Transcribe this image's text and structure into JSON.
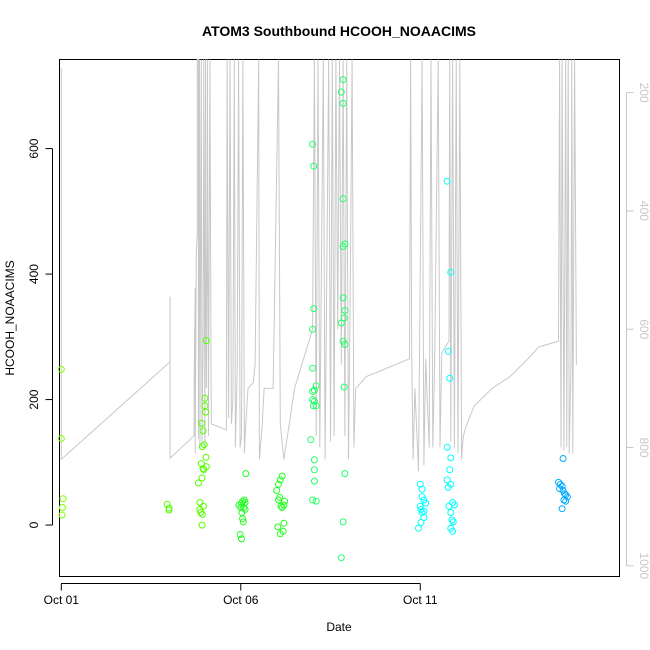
{
  "chart_data": {
    "type": "scatter",
    "title": "ATOM3 Southbound HCOOH_NOAACIMS",
    "xlabel": "Date",
    "ylabel": "HCOOH_NOAACIMS",
    "x_unit": "days in October (calendar day)",
    "xlim": [
      0.95,
      16.55
    ],
    "ylim": [
      -82,
      742
    ],
    "x_ticks": [
      {
        "value": 1,
        "label": "Oct 01"
      },
      {
        "value": 6,
        "label": "Oct 06"
      },
      {
        "value": 11,
        "label": "Oct 11"
      }
    ],
    "y_ticks": [
      0,
      200,
      400,
      600
    ],
    "y2_label": "",
    "y2_ticks": [
      200,
      400,
      600,
      800,
      1000
    ],
    "y2_lim_reversed": [
      1018,
      144
    ],
    "grid": false,
    "colors": {
      "pressure_line": "#c8c8c8",
      "y2_axis": "#c8c8c8"
    },
    "series": [
      {
        "color": "#7fff00",
        "points": [
          [
            1.0,
            248
          ],
          [
            1.0,
            138
          ],
          [
            1.05,
            42
          ],
          [
            1.03,
            28
          ],
          [
            1.02,
            16
          ]
        ]
      },
      {
        "color": "#55ff00",
        "points": [
          [
            3.95,
            33
          ],
          [
            4.0,
            27
          ],
          [
            4.0,
            24
          ],
          [
            4.82,
            67
          ],
          [
            4.86,
            36
          ],
          [
            4.9,
            98
          ],
          [
            4.92,
            75
          ],
          [
            4.95,
            90
          ],
          [
            4.97,
            88
          ],
          [
            4.88,
            20
          ],
          [
            4.93,
            17
          ],
          [
            4.96,
            30
          ],
          [
            4.92,
            0
          ],
          [
            4.91,
            162
          ],
          [
            4.95,
            150
          ],
          [
            4.98,
            128
          ],
          [
            4.93,
            125
          ],
          [
            5.0,
            202
          ],
          [
            5.0,
            190
          ],
          [
            5.02,
            180
          ],
          [
            5.04,
            294
          ],
          [
            4.86,
            25
          ],
          [
            5.03,
            108
          ],
          [
            5.04,
            93
          ]
        ]
      },
      {
        "color": "#22ff22",
        "points": [
          [
            5.95,
            32
          ],
          [
            6.0,
            28
          ],
          [
            6.02,
            35
          ],
          [
            6.05,
            38
          ],
          [
            6.1,
            40
          ],
          [
            6.12,
            36
          ],
          [
            6.03,
            20
          ],
          [
            6.05,
            10
          ],
          [
            6.07,
            5
          ],
          [
            5.98,
            -15
          ],
          [
            6.02,
            -22
          ],
          [
            6.08,
            28
          ],
          [
            6.14,
            82
          ],
          [
            6.12,
            25
          ],
          [
            7.0,
            55
          ],
          [
            7.05,
            65
          ],
          [
            7.1,
            72
          ],
          [
            7.15,
            78
          ],
          [
            7.05,
            40
          ],
          [
            7.08,
            44
          ],
          [
            7.12,
            30
          ],
          [
            7.15,
            28
          ],
          [
            7.2,
            32
          ],
          [
            7.22,
            38
          ],
          [
            7.03,
            -3
          ],
          [
            7.1,
            -14
          ],
          [
            7.18,
            -10
          ],
          [
            7.2,
            3
          ]
        ]
      },
      {
        "color": "#22ff66",
        "points": [
          [
            7.95,
            136
          ],
          [
            8.0,
            200
          ],
          [
            8.02,
            190
          ],
          [
            8.05,
            215
          ],
          [
            8.1,
            222
          ],
          [
            8.0,
            213
          ],
          [
            8.05,
            197
          ],
          [
            8.1,
            190
          ],
          [
            8.0,
            250
          ],
          [
            8.0,
            312
          ],
          [
            8.03,
            345
          ],
          [
            8.0,
            607
          ],
          [
            8.03,
            572
          ],
          [
            8.05,
            104
          ],
          [
            8.05,
            88
          ],
          [
            8.05,
            70
          ],
          [
            8.0,
            40
          ],
          [
            8.1,
            38
          ],
          [
            8.85,
            710
          ],
          [
            8.8,
            690
          ],
          [
            8.85,
            672
          ],
          [
            8.85,
            520
          ],
          [
            8.85,
            444
          ],
          [
            8.9,
            448
          ],
          [
            8.85,
            362
          ],
          [
            8.9,
            342
          ],
          [
            8.88,
            330
          ],
          [
            8.8,
            322
          ],
          [
            8.85,
            293
          ],
          [
            8.9,
            288
          ],
          [
            8.88,
            220
          ],
          [
            8.9,
            82
          ],
          [
            8.85,
            5
          ],
          [
            8.8,
            -52
          ]
        ]
      },
      {
        "color": "#00ffff",
        "points": [
          [
            11.0,
            65
          ],
          [
            11.05,
            57
          ],
          [
            11.05,
            45
          ],
          [
            11.1,
            40
          ],
          [
            11.0,
            30
          ],
          [
            11.02,
            25
          ],
          [
            11.05,
            20
          ],
          [
            11.1,
            12
          ],
          [
            10.95,
            -5
          ],
          [
            11.02,
            4
          ],
          [
            11.1,
            22
          ],
          [
            11.15,
            35
          ],
          [
            11.75,
            548
          ],
          [
            11.85,
            403
          ],
          [
            11.78,
            277
          ],
          [
            11.82,
            234
          ],
          [
            11.75,
            124
          ],
          [
            11.85,
            107
          ],
          [
            11.82,
            88
          ],
          [
            11.75,
            72
          ],
          [
            11.85,
            65
          ],
          [
            11.78,
            60
          ],
          [
            11.8,
            30
          ],
          [
            11.85,
            20
          ],
          [
            11.9,
            36
          ],
          [
            11.95,
            32
          ],
          [
            11.88,
            8
          ],
          [
            11.92,
            5
          ],
          [
            11.85,
            -5
          ],
          [
            11.9,
            -10
          ]
        ]
      },
      {
        "color": "#00aaff",
        "points": [
          [
            14.85,
            68
          ],
          [
            14.9,
            65
          ],
          [
            14.95,
            62
          ],
          [
            14.88,
            58
          ],
          [
            14.98,
            55
          ],
          [
            15.02,
            50
          ],
          [
            15.05,
            48
          ],
          [
            15.1,
            45
          ],
          [
            15.0,
            40
          ],
          [
            15.05,
            38
          ],
          [
            14.95,
            26
          ],
          [
            14.98,
            106
          ]
        ]
      }
    ],
    "pressure_profile": {
      "y2_unit": "hPa",
      "points": [
        [
          1.0,
          158
        ],
        [
          1.0,
          820
        ],
        [
          4.03,
          655
        ],
        [
          4.03,
          545
        ],
        [
          4.03,
          818
        ],
        [
          4.7,
          780
        ],
        [
          4.7,
          690
        ],
        [
          4.73,
          530
        ],
        [
          4.73,
          810
        ],
        [
          4.76,
          470
        ],
        [
          4.79,
          435
        ],
        [
          4.79,
          144
        ],
        [
          4.82,
          144
        ],
        [
          4.82,
          785
        ],
        [
          4.85,
          144
        ],
        [
          4.86,
          800
        ],
        [
          4.9,
          144
        ],
        [
          4.92,
          790
        ],
        [
          4.95,
          620
        ],
        [
          4.97,
          144
        ],
        [
          5.0,
          800
        ],
        [
          5.02,
          144
        ],
        [
          5.04,
          700
        ],
        [
          5.07,
          430
        ],
        [
          5.07,
          144
        ],
        [
          5.1,
          780
        ],
        [
          5.14,
          144
        ],
        [
          5.18,
          760
        ],
        [
          5.6,
          770
        ],
        [
          5.62,
          144
        ],
        [
          5.66,
          750
        ],
        [
          5.7,
          144
        ],
        [
          5.74,
          760
        ],
        [
          5.78,
          720
        ],
        [
          5.82,
          144
        ],
        [
          5.85,
          800
        ],
        [
          5.9,
          670
        ],
        [
          5.94,
          144
        ],
        [
          5.98,
          800
        ],
        [
          6.02,
          780
        ],
        [
          6.06,
          144
        ],
        [
          6.1,
          810
        ],
        [
          6.14,
          760
        ],
        [
          6.2,
          700
        ],
        [
          6.35,
          690
        ],
        [
          6.4,
          660
        ],
        [
          6.5,
          144
        ],
        [
          6.52,
          820
        ],
        [
          6.6,
          760
        ],
        [
          6.65,
          700
        ],
        [
          6.9,
          700
        ],
        [
          7.05,
          144
        ],
        [
          7.1,
          760
        ],
        [
          7.2,
          820
        ],
        [
          7.5,
          700
        ],
        [
          8.0,
          600
        ],
        [
          8.05,
          144
        ],
        [
          8.1,
          780
        ],
        [
          8.15,
          144
        ],
        [
          8.2,
          800
        ],
        [
          8.3,
          144
        ],
        [
          8.35,
          820
        ],
        [
          8.45,
          144
        ],
        [
          8.5,
          790
        ],
        [
          8.55,
          144
        ],
        [
          8.6,
          780
        ],
        [
          8.65,
          144
        ],
        [
          8.7,
          600
        ],
        [
          8.75,
          144
        ],
        [
          8.8,
          660
        ],
        [
          8.85,
          144
        ],
        [
          8.9,
          780
        ],
        [
          8.95,
          144
        ],
        [
          9.0,
          820
        ],
        [
          9.05,
          520
        ],
        [
          9.1,
          144
        ],
        [
          9.15,
          800
        ],
        [
          9.2,
          700
        ],
        [
          9.5,
          680
        ],
        [
          10.7,
          650
        ],
        [
          10.73,
          144
        ],
        [
          10.76,
          640
        ],
        [
          10.8,
          820
        ],
        [
          10.85,
          700
        ],
        [
          10.95,
          840
        ],
        [
          11.05,
          144
        ],
        [
          11.1,
          830
        ],
        [
          11.15,
          650
        ],
        [
          11.25,
          800
        ],
        [
          11.3,
          144
        ],
        [
          11.35,
          800
        ],
        [
          11.4,
          660
        ],
        [
          11.5,
          144
        ],
        [
          11.55,
          800
        ],
        [
          11.6,
          640
        ],
        [
          11.8,
          620
        ],
        [
          11.82,
          144
        ],
        [
          11.85,
          790
        ],
        [
          11.9,
          144
        ],
        [
          11.95,
          800
        ],
        [
          12.0,
          144
        ],
        [
          12.05,
          810
        ],
        [
          12.1,
          144
        ],
        [
          12.15,
          820
        ],
        [
          12.2,
          780
        ],
        [
          12.3,
          760
        ],
        [
          12.5,
          730
        ],
        [
          13.0,
          700
        ],
        [
          13.5,
          680
        ],
        [
          14.0,
          650
        ],
        [
          14.3,
          630
        ],
        [
          14.85,
          620
        ],
        [
          14.88,
          144
        ],
        [
          14.92,
          800
        ],
        [
          14.95,
          144
        ],
        [
          15.0,
          805
        ],
        [
          15.05,
          144
        ],
        [
          15.08,
          800
        ],
        [
          15.12,
          144
        ],
        [
          15.15,
          810
        ],
        [
          15.2,
          660
        ],
        [
          15.22,
          144
        ],
        [
          15.25,
          810
        ],
        [
          15.3,
          144
        ],
        [
          15.35,
          660
        ]
      ]
    }
  }
}
